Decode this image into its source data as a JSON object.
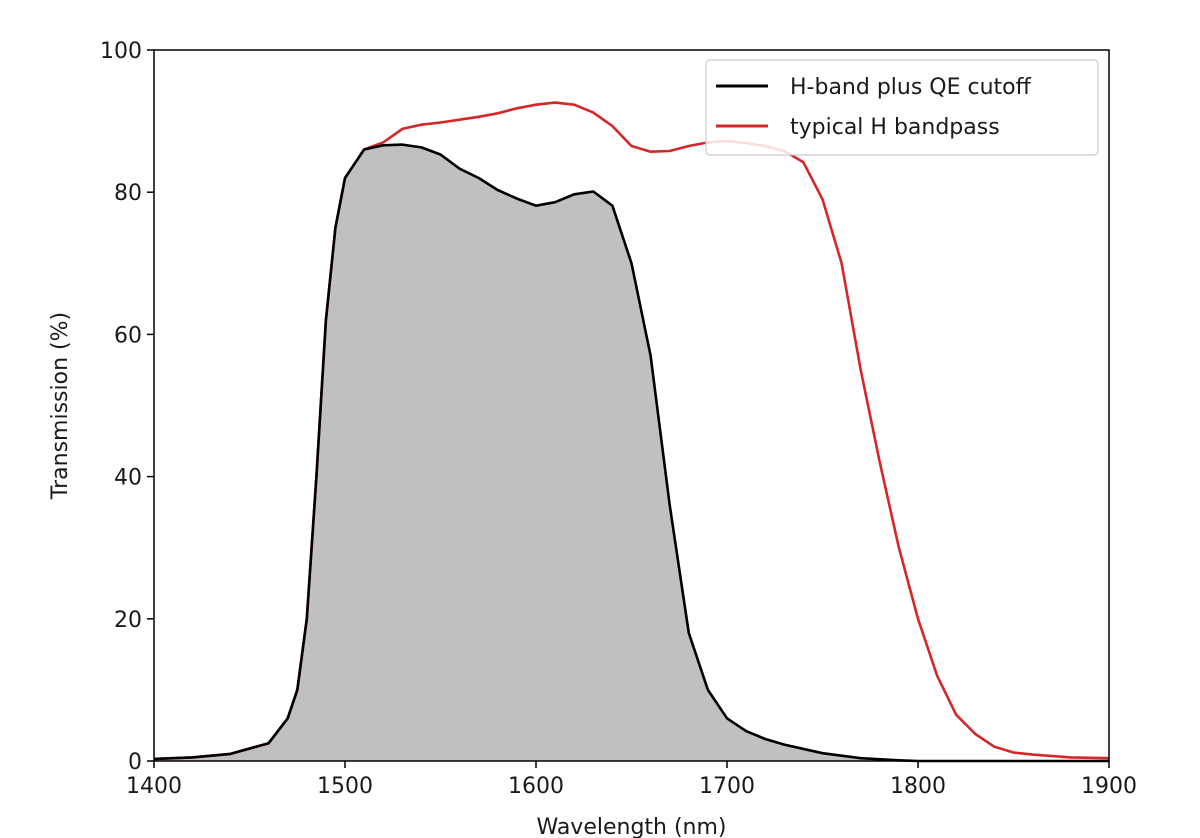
{
  "chart_data": {
    "type": "line",
    "title": "",
    "xlabel": "Wavelength (nm)",
    "ylabel": "Transmission (%)",
    "xlim": [
      1400,
      1900
    ],
    "ylim": [
      0,
      100
    ],
    "xticks": [
      1400,
      1500,
      1600,
      1700,
      1800,
      1900
    ],
    "yticks": [
      0,
      20,
      40,
      60,
      80,
      100
    ],
    "grid": false,
    "legend_position": "top-right",
    "series": [
      {
        "name": "H-band plus QE cutoff",
        "color": "#000000",
        "fill": "#c0c0c0",
        "x": [
          1400,
          1420,
          1440,
          1460,
          1470,
          1475,
          1480,
          1485,
          1490,
          1495,
          1500,
          1505,
          1510,
          1520,
          1530,
          1540,
          1550,
          1560,
          1570,
          1580,
          1590,
          1600,
          1610,
          1620,
          1630,
          1640,
          1650,
          1660,
          1670,
          1680,
          1690,
          1700,
          1710,
          1720,
          1730,
          1750,
          1770,
          1790,
          1800,
          1850,
          1900
        ],
        "values": [
          0.3,
          0.5,
          1,
          2.5,
          6,
          10,
          20,
          40,
          62,
          75,
          82,
          84,
          86,
          86.6,
          86.7,
          86.3,
          85.3,
          83.3,
          82,
          80.3,
          79.1,
          78.1,
          78.6,
          79.7,
          80.1,
          78.1,
          70,
          57,
          36,
          18,
          10,
          6,
          4.2,
          3.1,
          2.3,
          1.1,
          0.4,
          0.1,
          0,
          0,
          0
        ]
      },
      {
        "name": "typical H bandpass",
        "color": "#d62728",
        "x": [
          1400,
          1420,
          1440,
          1460,
          1470,
          1475,
          1480,
          1485,
          1490,
          1495,
          1500,
          1505,
          1510,
          1520,
          1530,
          1540,
          1550,
          1560,
          1570,
          1580,
          1590,
          1600,
          1610,
          1620,
          1630,
          1640,
          1650,
          1660,
          1670,
          1680,
          1690,
          1700,
          1710,
          1720,
          1730,
          1740,
          1750,
          1760,
          1770,
          1780,
          1790,
          1800,
          1810,
          1820,
          1830,
          1840,
          1850,
          1860,
          1880,
          1900
        ],
        "values": [
          0.3,
          0.5,
          1,
          2.5,
          6,
          10,
          20,
          40,
          62,
          75,
          82,
          84,
          86,
          87,
          88.9,
          89.5,
          89.8,
          90.2,
          90.6,
          91.1,
          91.8,
          92.3,
          92.6,
          92.3,
          91.2,
          89.3,
          86.5,
          85.7,
          85.8,
          86.5,
          87,
          87.2,
          86.9,
          86.5,
          85.8,
          84.2,
          79,
          70,
          55,
          42,
          30,
          20,
          12,
          6.5,
          3.8,
          2,
          1.2,
          0.9,
          0.5,
          0.4
        ]
      }
    ]
  }
}
